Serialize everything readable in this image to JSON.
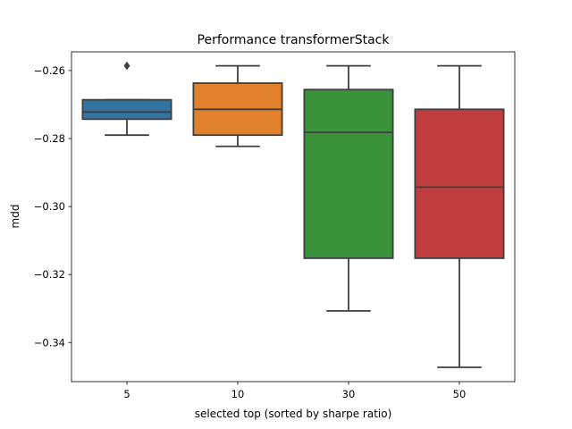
{
  "chart_data": {
    "type": "box",
    "title": "Performance transformerStack",
    "xlabel": "selected top (sorted by sharpe ratio)",
    "ylabel": "mdd",
    "ylim": [
      -0.3515,
      -0.2545
    ],
    "yticks": [
      -0.34,
      -0.32,
      -0.3,
      -0.28,
      -0.26
    ],
    "ytick_labels": [
      "−0.34",
      "−0.32",
      "−0.30",
      "−0.28",
      "−0.26"
    ],
    "categories": [
      "5",
      "10",
      "30",
      "50"
    ],
    "boxes": [
      {
        "category": "5",
        "whisker_low": -0.279,
        "q1": -0.2743,
        "median": -0.2722,
        "q3": -0.2686,
        "whisker_high": -0.2686,
        "outliers": [
          -0.2586
        ],
        "color": "#3274a1"
      },
      {
        "category": "10",
        "whisker_low": -0.2823,
        "q1": -0.279,
        "median": -0.2714,
        "q3": -0.2637,
        "whisker_high": -0.2586,
        "outliers": [],
        "color": "#e1812c"
      },
      {
        "category": "30",
        "whisker_low": -0.3307,
        "q1": -0.3152,
        "median": -0.2782,
        "q3": -0.2656,
        "whisker_high": -0.2586,
        "outliers": [],
        "color": "#3a923a"
      },
      {
        "category": "50",
        "whisker_low": -0.3473,
        "q1": -0.3152,
        "median": -0.2943,
        "q3": -0.2714,
        "whisker_high": -0.2586,
        "outliers": [],
        "color": "#c03d3e"
      }
    ],
    "line_color": "#3f3f3f",
    "grid": false,
    "legend": "none"
  }
}
